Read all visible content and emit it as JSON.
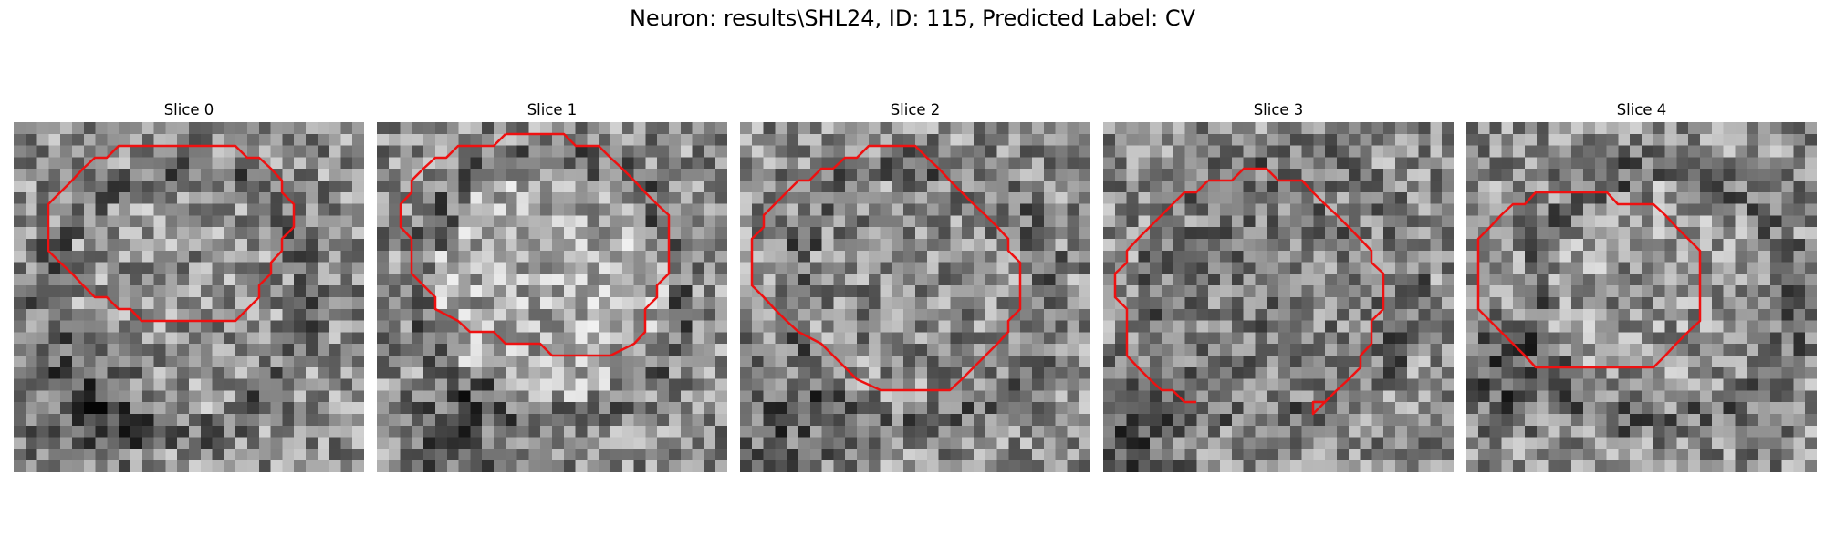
{
  "figure": {
    "title": "Neuron: results\\SHL24, ID: 115, Predicted Label: CV",
    "contour_color": "#ee1111",
    "slices": [
      {
        "title": "Slice 0",
        "seed": 11,
        "center": [
          0.6,
          0.45,
          0.5
        ],
        "dark_blob": [
          0.2,
          0.8,
          0.12,
          0.25
        ]
      },
      {
        "title": "Slice 1",
        "seed": 23,
        "center": [
          0.75,
          0.48,
          0.45
        ],
        "dark_blob": [
          0.2,
          0.88,
          0.1,
          0.3
        ]
      },
      {
        "title": "Slice 2",
        "seed": 37,
        "center": [
          0.55,
          0.5,
          0.48
        ],
        "dark_blob": [
          0.1,
          0.85,
          0.12,
          0.2
        ]
      },
      {
        "title": "Slice 3",
        "seed": 41,
        "center": [
          0.45,
          0.5,
          0.45
        ],
        "dark_blob": [
          0.05,
          0.85,
          0.12,
          0.3
        ]
      },
      {
        "title": "Slice 4",
        "seed": 53,
        "center": [
          0.62,
          0.55,
          0.48
        ],
        "dark_blob": [
          0.1,
          0.7,
          0.1,
          0.3
        ]
      }
    ]
  }
}
